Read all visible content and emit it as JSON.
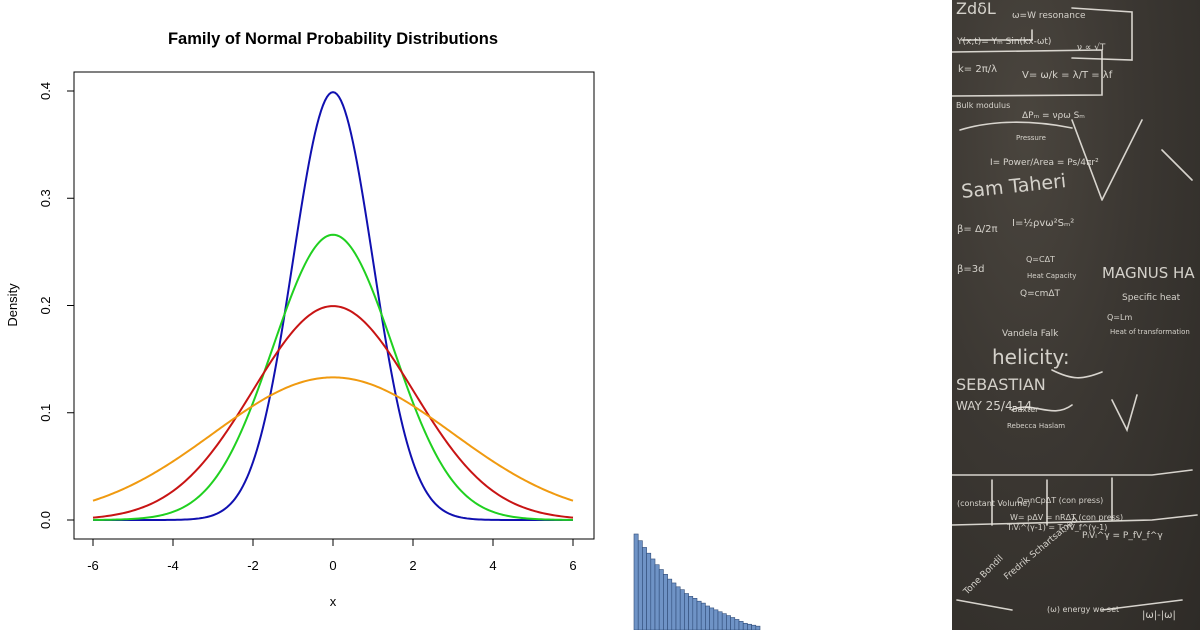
{
  "chart_data": {
    "type": "line",
    "title": "Family of Normal Probability Distributions",
    "xlabel": "x",
    "ylabel": "Density",
    "xlim": [
      -6,
      6
    ],
    "ylim": [
      0,
      0.4
    ],
    "xticks": [
      "-6",
      "-4",
      "-2",
      "0",
      "2",
      "4",
      "6"
    ],
    "yticks": [
      "0.0",
      "0.1",
      "0.2",
      "0.3",
      "0.4"
    ],
    "grid": false,
    "legend": "none",
    "series": [
      {
        "color": "#1010b0",
        "mean": 0,
        "sd": 1,
        "peak": 0.399
      },
      {
        "color": "#20d020",
        "mean": 0,
        "sd": 1.5,
        "peak": 0.266
      },
      {
        "color": "#c81414",
        "mean": 0,
        "sd": 2,
        "peak": 0.199
      },
      {
        "color": "#f09a10",
        "mean": 0,
        "sd": 3,
        "peak": 0.133
      }
    ]
  },
  "histogram": {
    "values": [
      1.0,
      0.93,
      0.86,
      0.8,
      0.74,
      0.68,
      0.63,
      0.58,
      0.53,
      0.49,
      0.45,
      0.42,
      0.38,
      0.35,
      0.33,
      0.3,
      0.28,
      0.25,
      0.23,
      0.21,
      0.19,
      0.17,
      0.15,
      0.13,
      0.11,
      0.09,
      0.07,
      0.06,
      0.05,
      0.04
    ],
    "fill_color": "#6f93c6"
  },
  "chalkboard": {
    "background_color": "#3b3732",
    "chalk_color": "#e9e6df",
    "texts": [
      "ZdδL",
      "ω=W resonance",
      "Y(x,t)= Yₘ Sin(kx-ωt)",
      "ν ∝ √T",
      "k= 2π/λ",
      "V= ω/k = λ/T = λf",
      "Bulk modulus",
      "ΔPₘ = νρω Sₘ",
      "Pressure",
      "I= Power/Area = Ps/4πr²",
      "Sam Taheri",
      "β= Δ/2π",
      "I=½ρvω²Sₘ²",
      "β=3d",
      "Q=CΔT",
      "Heat Capacity",
      "MAGNUS HA",
      "Q=cmΔT",
      "Specific heat",
      "Q=Lm",
      "Heat of transformation",
      "Vandela Falk",
      "helicity:",
      "SEBASTIAN",
      "WAY 25/4-14",
      "Baxter",
      "Rebecca Haslam",
      "Q=nCpΔT (con press)",
      "(constant Volume)",
      "W= pΔV = nRΔT (con press)",
      "TᵢVᵢ^(γ-1) = T_fV_f^(γ-1)",
      "PᵢVᵢ^γ = P_fV_f^γ",
      "Tone Bondil",
      "Fredrik Schartsamad",
      "(ω) energy we set",
      "|ω|-|ω|"
    ]
  }
}
